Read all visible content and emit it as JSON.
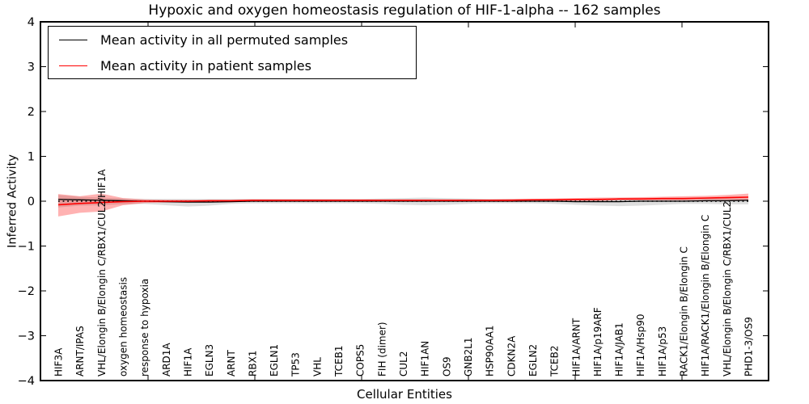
{
  "title": "Hypoxic and oxygen homeostasis regulation of HIF-1-alpha -- 162 samples",
  "legend": {
    "items": [
      {
        "label": "Mean activity in all permuted samples",
        "color": "#000000"
      },
      {
        "label": "Mean activity in patient samples",
        "color": "#ff0000"
      }
    ]
  },
  "axes": {
    "ylabel": "Inferred Activity",
    "xlabel": "Cellular Entities",
    "yticks": [
      4,
      3,
      2,
      1,
      0,
      -1,
      -2,
      -3,
      -4
    ],
    "ylim": [
      -4,
      4
    ]
  },
  "chart_data": {
    "type": "line",
    "title": "Hypoxic and oxygen homeostasis regulation of HIF-1-alpha -- 162 samples",
    "xlabel": "Cellular Entities",
    "ylabel": "Inferred Activity",
    "ylim": [
      -4,
      4
    ],
    "grid": false,
    "legend_position": "upper left",
    "zero_line": {
      "y": 0,
      "style": "dotted",
      "color": "#000000"
    },
    "categories": [
      "HIF3A",
      "ARNT/IPAS",
      "VHL/Elongin B/Elongin C/RBX1/CUL2/HIF1A",
      "oxygen homeostasis",
      "response to hypoxia",
      "ARD1A",
      "HIF1A",
      "EGLN3",
      "ARNT",
      "RBX1",
      "EGLN1",
      "TP53",
      "VHL",
      "TCEB1",
      "COPS5",
      "FIH (dimer)",
      "CUL2",
      "HIF1AN",
      "OS9",
      "GNB2L1",
      "HSP90AA1",
      "CDKN2A",
      "EGLN2",
      "TCEB2",
      "HIF1A/ARNT",
      "HIF1A/p19ARF",
      "HIF1A/JAB1",
      "HIF1A/Hsp90",
      "HIF1A/p53",
      "RACK1/Elongin B/Elongin C",
      "HIF1A/RACK1/Elongin B/Elongin C",
      "VHL/Elongin B/Elongin C/RBX1/CUL2",
      "PHD1-3/OS9"
    ],
    "series": [
      {
        "name": "Mean activity in all permuted samples",
        "color": "#000000",
        "style": "solid",
        "values": [
          0.04,
          0.03,
          0.02,
          0.01,
          0.0,
          -0.01,
          -0.02,
          -0.02,
          -0.01,
          0.0,
          0.0,
          0.0,
          0.0,
          0.0,
          0.0,
          0.0,
          0.0,
          0.0,
          0.0,
          0.0,
          0.0,
          0.0,
          0.0,
          0.0,
          -0.01,
          -0.01,
          -0.01,
          0.0,
          0.0,
          0.0,
          0.01,
          0.01,
          0.02
        ]
      },
      {
        "name": "Mean activity in patient samples",
        "color": "#ff0000",
        "style": "solid",
        "values": [
          -0.08,
          -0.05,
          -0.03,
          -0.01,
          0.0,
          0.0,
          0.0,
          0.01,
          0.01,
          0.02,
          0.02,
          0.02,
          0.02,
          0.02,
          0.02,
          0.02,
          0.02,
          0.02,
          0.02,
          0.02,
          0.02,
          0.02,
          0.03,
          0.03,
          0.04,
          0.04,
          0.05,
          0.05,
          0.06,
          0.06,
          0.07,
          0.08,
          0.09
        ]
      }
    ],
    "bands": [
      {
        "name": "permuted-samples-range",
        "color": "#000000",
        "opacity": 0.13,
        "upper": [
          0.14,
          0.1,
          0.08,
          0.06,
          0.05,
          0.05,
          0.05,
          0.05,
          0.05,
          0.05,
          0.05,
          0.05,
          0.05,
          0.05,
          0.05,
          0.06,
          0.07,
          0.08,
          0.07,
          0.06,
          0.05,
          0.05,
          0.05,
          0.05,
          0.05,
          0.05,
          0.05,
          0.05,
          0.05,
          0.06,
          0.06,
          0.06,
          0.06
        ],
        "lower": [
          -0.14,
          -0.1,
          -0.09,
          -0.07,
          -0.06,
          -0.09,
          -0.12,
          -0.1,
          -0.06,
          -0.05,
          -0.05,
          -0.05,
          -0.05,
          -0.05,
          -0.05,
          -0.06,
          -0.08,
          -0.09,
          -0.08,
          -0.06,
          -0.05,
          -0.05,
          -0.05,
          -0.06,
          -0.08,
          -0.1,
          -0.11,
          -0.1,
          -0.08,
          -0.06,
          -0.06,
          -0.07,
          -0.07
        ]
      },
      {
        "name": "patient-samples-range",
        "color": "#ff0000",
        "opacity": 0.3,
        "upper": [
          0.16,
          0.11,
          0.17,
          0.07,
          0.04,
          0.03,
          0.03,
          0.03,
          0.03,
          0.04,
          0.04,
          0.04,
          0.04,
          0.04,
          0.04,
          0.04,
          0.04,
          0.04,
          0.04,
          0.04,
          0.04,
          0.05,
          0.05,
          0.06,
          0.07,
          0.08,
          0.08,
          0.09,
          0.1,
          0.11,
          0.12,
          0.14,
          0.17
        ],
        "lower": [
          -0.34,
          -0.26,
          -0.23,
          -0.09,
          -0.04,
          -0.03,
          -0.03,
          -0.02,
          -0.02,
          -0.01,
          0.0,
          0.0,
          0.0,
          0.0,
          0.0,
          0.0,
          0.0,
          0.0,
          0.0,
          0.0,
          0.0,
          0.0,
          0.01,
          0.01,
          0.01,
          0.01,
          0.02,
          0.02,
          0.02,
          0.02,
          0.03,
          0.03,
          0.03
        ]
      }
    ]
  }
}
